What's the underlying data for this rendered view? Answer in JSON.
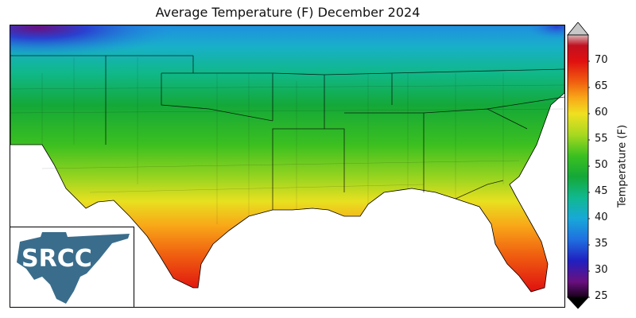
{
  "title": "Average Temperature (F) December 2024",
  "logo": {
    "text": "SRCC"
  },
  "colorbar": {
    "label": "Temperature (F)",
    "ticks": [
      "70",
      "65",
      "60",
      "55",
      "50",
      "45",
      "40",
      "35",
      "30",
      "25"
    ],
    "min": 25,
    "max": 75,
    "stops": [
      {
        "value": 25,
        "color": "#1a001a"
      },
      {
        "value": 28,
        "color": "#6a1080"
      },
      {
        "value": 32,
        "color": "#2020c0"
      },
      {
        "value": 36,
        "color": "#1f6fe0"
      },
      {
        "value": 40,
        "color": "#18a8d8"
      },
      {
        "value": 44,
        "color": "#10b890"
      },
      {
        "value": 48,
        "color": "#14a838"
      },
      {
        "value": 52,
        "color": "#3cc020"
      },
      {
        "value": 56,
        "color": "#a8d820"
      },
      {
        "value": 60,
        "color": "#f0e020"
      },
      {
        "value": 63,
        "color": "#f8a818"
      },
      {
        "value": 66,
        "color": "#f06010"
      },
      {
        "value": 70,
        "color": "#e01010"
      },
      {
        "value": 73,
        "color": "#c01020"
      },
      {
        "value": 75,
        "color": "#d8b8b8"
      }
    ],
    "over_color": "#c8c8c8",
    "under_color": "#000000"
  }
}
